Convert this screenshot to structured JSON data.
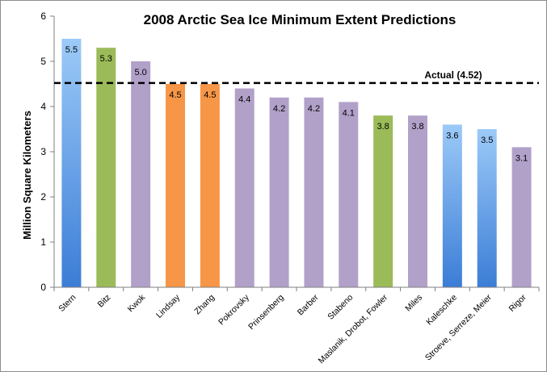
{
  "chart_data": {
    "type": "bar",
    "title": "2008 Arctic Sea Ice Minimum Extent Predictions",
    "xlabel": "",
    "ylabel": "Million Square Kilometers",
    "ylim": [
      0,
      6
    ],
    "yticks": [
      0,
      1,
      2,
      3,
      4,
      5,
      6
    ],
    "grid": false,
    "categories": [
      "Stern",
      "Bitz",
      "Kwok",
      "Lindsay",
      "Zhang",
      "Pokrovsky",
      "Prinsenberg",
      "Barber",
      "Stabeno",
      "Maslanik, Drobot, Fowler",
      "Miles",
      "Kaleschke",
      "Stroeve, Serreze, Meier",
      "Rigor"
    ],
    "values": [
      5.5,
      5.3,
      5.0,
      4.5,
      4.5,
      4.4,
      4.2,
      4.2,
      4.1,
      3.8,
      3.8,
      3.6,
      3.5,
      3.1
    ],
    "value_labels": [
      "5.5",
      "5.3",
      "5.0",
      "4.5",
      "4.5",
      "4.4",
      "4.2",
      "4.2",
      "4.1",
      "3.8",
      "3.8",
      "3.6",
      "3.5",
      "3.1"
    ],
    "bar_groups": [
      "blue",
      "green",
      "purple",
      "orange",
      "orange",
      "purple",
      "purple",
      "purple",
      "purple",
      "green",
      "purple",
      "blue",
      "blue",
      "purple"
    ],
    "colors": {
      "blue_top": "#9ccaf8",
      "blue_bottom": "#3b7dd6",
      "green": "#9bbb59",
      "purple": "#b1a1c9",
      "orange": "#f79646",
      "reference_line": "#000000"
    },
    "reference_line": {
      "value": 4.52,
      "label": "Actual (4.52)",
      "style": "dashed"
    }
  }
}
